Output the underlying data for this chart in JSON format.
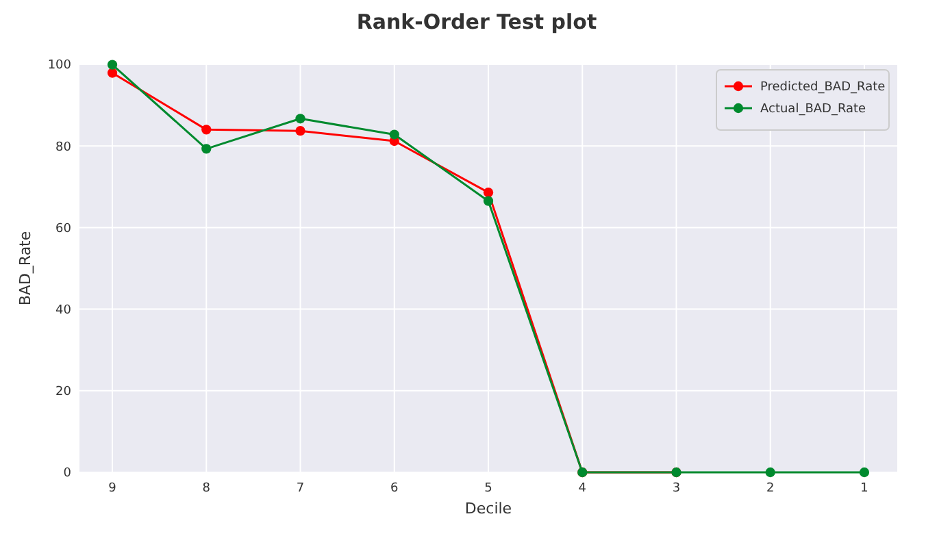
{
  "chart_data": {
    "type": "line",
    "title": "Rank-Order Test plot",
    "xlabel": "Decile",
    "ylabel": "BAD_Rate",
    "categories": [
      "9",
      "8",
      "7",
      "6",
      "5",
      "4",
      "3",
      "2",
      "1"
    ],
    "series": [
      {
        "name": "Predicted_BAD_Rate",
        "color": "#ff0000",
        "values": [
          97.9,
          84.0,
          83.7,
          81.2,
          68.6,
          0,
          0,
          null,
          null
        ]
      },
      {
        "name": "Actual_BAD_Rate",
        "color": "#008a2e",
        "values": [
          99.9,
          79.3,
          86.7,
          82.8,
          66.5,
          0,
          0,
          0,
          0
        ]
      }
    ],
    "ylim": [
      0,
      100
    ],
    "yticks": [
      0,
      20,
      40,
      60,
      80,
      100
    ],
    "grid": true,
    "legend": "top right",
    "marker": "circle",
    "line_style": "solid"
  }
}
